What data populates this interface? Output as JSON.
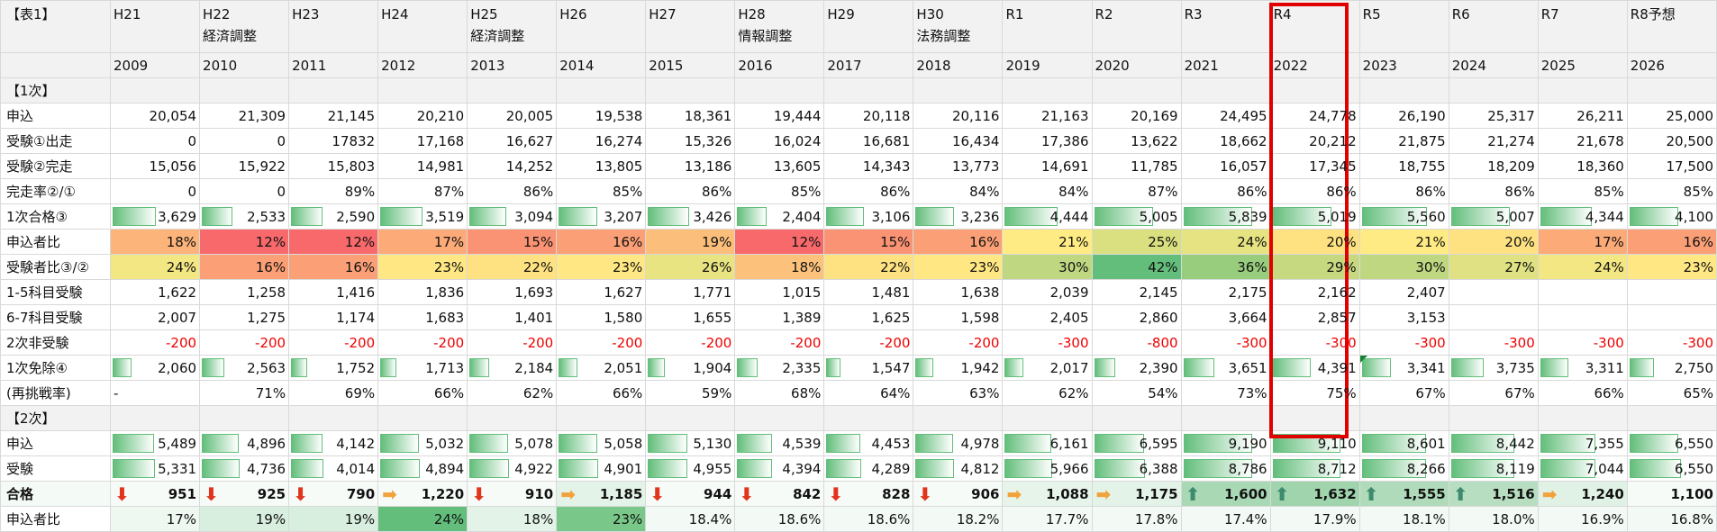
{
  "corner_label": "【表1】",
  "columns": [
    {
      "era": "H21",
      "note": "",
      "year": "2009"
    },
    {
      "era": "H22",
      "note": "経済調整",
      "year": "2010"
    },
    {
      "era": "H23",
      "note": "",
      "year": "2011"
    },
    {
      "era": "H24",
      "note": "",
      "year": "2012"
    },
    {
      "era": "H25",
      "note": "経済調整",
      "year": "2013"
    },
    {
      "era": "H26",
      "note": "",
      "year": "2014"
    },
    {
      "era": "H27",
      "note": "",
      "year": "2015"
    },
    {
      "era": "H28",
      "note": "情報調整",
      "year": "2016"
    },
    {
      "era": "H29",
      "note": "",
      "year": "2017"
    },
    {
      "era": "H30",
      "note": "法務調整",
      "year": "2018"
    },
    {
      "era": "R1",
      "note": "",
      "year": "2019"
    },
    {
      "era": "R2",
      "note": "",
      "year": "2020"
    },
    {
      "era": "R3",
      "note": "",
      "year": "2021"
    },
    {
      "era": "R4",
      "note": "",
      "year": "2022"
    },
    {
      "era": "R5",
      "note": "",
      "year": "2023"
    },
    {
      "era": "R6",
      "note": "",
      "year": "2024"
    },
    {
      "era": "R7",
      "note": "",
      "year": "2025"
    },
    {
      "era": "R8予想",
      "note": "",
      "year": "2026"
    }
  ],
  "sections": {
    "first": "【1次】",
    "second": "【2次】"
  },
  "rows": [
    {
      "id": "apply1",
      "label": "申込",
      "type": "plain",
      "values": [
        "20,054",
        "21,309",
        "21,145",
        "20,210",
        "20,005",
        "19,538",
        "18,361",
        "19,444",
        "20,118",
        "20,116",
        "21,163",
        "20,169",
        "24,495",
        "24,778",
        "26,190",
        "25,317",
        "26,211",
        "25,000"
      ]
    },
    {
      "id": "take1",
      "label": "受験①出走",
      "type": "plain",
      "values": [
        "0",
        "0",
        "17832",
        "17,168",
        "16,627",
        "16,274",
        "15,326",
        "16,024",
        "16,681",
        "16,434",
        "17,386",
        "13,622",
        "18,662",
        "20,212",
        "21,875",
        "21,274",
        "21,678",
        "20,500"
      ]
    },
    {
      "id": "finish",
      "label": "受験②完走",
      "type": "plain",
      "values": [
        "15,056",
        "15,922",
        "15,803",
        "14,981",
        "14,252",
        "13,805",
        "13,186",
        "13,605",
        "14,343",
        "13,773",
        "14,691",
        "11,785",
        "16,057",
        "17,345",
        "18,755",
        "18,209",
        "18,360",
        "17,500"
      ]
    },
    {
      "id": "finrate",
      "label": "完走率②/①",
      "type": "plain",
      "values": [
        "0",
        "0",
        "89%",
        "87%",
        "86%",
        "85%",
        "86%",
        "85%",
        "86%",
        "84%",
        "84%",
        "87%",
        "86%",
        "86%",
        "86%",
        "86%",
        "85%",
        "85%"
      ]
    },
    {
      "id": "pass1",
      "label": "1次合格③",
      "type": "bar",
      "values": [
        "3,629",
        "2,533",
        "2,590",
        "3,519",
        "3,094",
        "3,207",
        "3,426",
        "2,404",
        "3,106",
        "3,236",
        "4,444",
        "5,005",
        "5,839",
        "5,019",
        "5,560",
        "5,007",
        "4,344",
        "4,100"
      ],
      "levels": [
        0.62,
        0.43,
        0.44,
        0.6,
        0.53,
        0.55,
        0.59,
        0.41,
        0.53,
        0.55,
        0.76,
        0.86,
        1.0,
        0.86,
        0.95,
        0.86,
        0.74,
        0.7
      ]
    },
    {
      "id": "ratio_apply",
      "label": "申込者比",
      "type": "heat",
      "values": [
        "18%",
        "12%",
        "12%",
        "17%",
        "15%",
        "16%",
        "19%",
        "12%",
        "15%",
        "16%",
        "21%",
        "25%",
        "24%",
        "20%",
        "21%",
        "20%",
        "17%",
        "16%"
      ],
      "colors": [
        "#fcb47a",
        "#f8696b",
        "#f8696b",
        "#fcaa77",
        "#fa9373",
        "#fba076",
        "#fcbf7b",
        "#f8696b",
        "#fa9373",
        "#fba076",
        "#ffeb84",
        "#dae080",
        "#e5e382",
        "#fee282",
        "#ffeb84",
        "#fee282",
        "#fcaa77",
        "#fba076"
      ]
    },
    {
      "id": "ratio_take",
      "label": "受験者比③/②",
      "type": "heat",
      "values": [
        "24%",
        "16%",
        "16%",
        "23%",
        "22%",
        "23%",
        "26%",
        "18%",
        "22%",
        "23%",
        "30%",
        "42%",
        "36%",
        "29%",
        "30%",
        "27%",
        "24%",
        "23%"
      ],
      "colors": [
        "#f3e783",
        "#fba076",
        "#fba076",
        "#ffe883",
        "#fee282",
        "#ffe883",
        "#e8e482",
        "#fcc27c",
        "#fee282",
        "#ffe883",
        "#bfd780",
        "#63be7b",
        "#98cd7e",
        "#c7d980",
        "#bfd780",
        "#dfe182",
        "#f3e783",
        "#ffe883"
      ]
    },
    {
      "id": "sub15",
      "label": "1-5科目受験",
      "type": "plain",
      "values": [
        "1,622",
        "1,258",
        "1,416",
        "1,836",
        "1,693",
        "1,627",
        "1,771",
        "1,015",
        "1,481",
        "1,638",
        "2,039",
        "2,145",
        "2,175",
        "2,162",
        "2,407",
        "",
        "",
        ""
      ]
    },
    {
      "id": "sub67",
      "label": "6-7科目受験",
      "type": "plain",
      "values": [
        "2,007",
        "1,275",
        "1,174",
        "1,683",
        "1,401",
        "1,580",
        "1,655",
        "1,389",
        "1,625",
        "1,598",
        "2,405",
        "2,860",
        "3,664",
        "2,857",
        "3,153",
        "",
        "",
        ""
      ]
    },
    {
      "id": "nonexam",
      "label": "2次非受験",
      "type": "neg",
      "values": [
        "-200",
        "-200",
        "-200",
        "-200",
        "-200",
        "-200",
        "-200",
        "-200",
        "-200",
        "-200",
        "-300",
        "-800",
        "-300",
        "-300",
        "-300",
        "-300",
        "-300",
        "-300"
      ]
    },
    {
      "id": "exempt",
      "label": "1次免除④",
      "type": "bar",
      "values": [
        "2,060",
        "2,563",
        "1,752",
        "1,713",
        "2,184",
        "2,051",
        "1,904",
        "2,335",
        "1,547",
        "1,942",
        "2,017",
        "2,390",
        "3,651",
        "4,391",
        "3,341",
        "3,735",
        "3,311",
        "2,750"
      ],
      "levels": [
        0.25,
        0.31,
        0.21,
        0.21,
        0.27,
        0.25,
        0.23,
        0.28,
        0.19,
        0.24,
        0.25,
        0.29,
        0.44,
        0.54,
        0.41,
        0.46,
        0.4,
        0.34
      ]
    },
    {
      "id": "retry",
      "label": "(再挑戦率)",
      "type": "plain",
      "values": [
        "-",
        "71%",
        "69%",
        "66%",
        "62%",
        "66%",
        "59%",
        "68%",
        "64%",
        "63%",
        "62%",
        "54%",
        "73%",
        "75%",
        "67%",
        "67%",
        "66%",
        "65%"
      ]
    }
  ],
  "rows2": [
    {
      "id": "apply2",
      "label": "申込",
      "type": "bar",
      "values": [
        "5,489",
        "4,896",
        "4,142",
        "5,032",
        "5,078",
        "5,058",
        "5,130",
        "4,539",
        "4,453",
        "4,978",
        "6,161",
        "6,595",
        "9,190",
        "9,110",
        "8,601",
        "8,442",
        "7,355",
        "6,550"
      ],
      "levels": [
        0.6,
        0.53,
        0.45,
        0.55,
        0.55,
        0.55,
        0.56,
        0.49,
        0.48,
        0.54,
        0.67,
        0.72,
        1.0,
        0.99,
        0.94,
        0.92,
        0.8,
        0.71
      ]
    },
    {
      "id": "take2",
      "label": "受験",
      "type": "bar",
      "values": [
        "5,331",
        "4,736",
        "4,014",
        "4,894",
        "4,922",
        "4,901",
        "4,955",
        "4,394",
        "4,289",
        "4,812",
        "5,966",
        "6,388",
        "8,786",
        "8,712",
        "8,266",
        "8,119",
        "7,044",
        "6,550"
      ],
      "levels": [
        0.61,
        0.54,
        0.46,
        0.56,
        0.56,
        0.56,
        0.56,
        0.5,
        0.49,
        0.55,
        0.68,
        0.73,
        1.0,
        0.99,
        0.94,
        0.92,
        0.8,
        0.75
      ]
    },
    {
      "id": "pass2",
      "label": "合格",
      "type": "pass",
      "values": [
        "951",
        "925",
        "790",
        "1,220",
        "910",
        "1,185",
        "944",
        "842",
        "828",
        "906",
        "1,088",
        "1,175",
        "1,600",
        "1,632",
        "1,555",
        "1,516",
        "1,240",
        "1,100"
      ],
      "arrows": [
        "down",
        "down",
        "down",
        "side",
        "down",
        "side",
        "down",
        "down",
        "down",
        "down",
        "side",
        "side",
        "up",
        "up",
        "up",
        "up",
        "side",
        ""
      ],
      "colors": [
        "#f6fbf8",
        "#f6fbf8",
        "#f6fbf8",
        "#f6fbf8",
        "#f6fbf8",
        "#e3f3e8",
        "#f6fbf8",
        "#f6fbf8",
        "#f6fbf8",
        "#f6fbf8",
        "#e6f4ea",
        "#e3f3e8",
        "#a9d8b5",
        "#9fd4ad",
        "#afdbba",
        "#b7dec1",
        "#e0f2e5",
        "#f6fbf8"
      ]
    },
    {
      "id": "ratio2",
      "label": "申込者比",
      "type": "heat",
      "values": [
        "17%",
        "19%",
        "19%",
        "24%",
        "18%",
        "23%",
        "18.4%",
        "18.6%",
        "18.6%",
        "18.2%",
        "17.7%",
        "17.8%",
        "17.4%",
        "17.9%",
        "18.1%",
        "18.0%",
        "16.9%",
        "16.8%"
      ],
      "colors": [
        "#eef8f1",
        "#d8efe0",
        "#d8efe0",
        "#63be7b",
        "#e3f3e8",
        "#7ac889",
        "#f3faf5",
        "#f3faf5",
        "#f3faf5",
        "#f3faf5",
        "#f3faf5",
        "#f3faf5",
        "#f3faf5",
        "#f3faf5",
        "#f3faf5",
        "#f3faf5",
        "#f3faf5",
        "#f3faf5"
      ]
    }
  ],
  "arrow_glyphs": {
    "down": "⬇",
    "side": "➡",
    "up": "⬆"
  },
  "highlight_color": "#e00000",
  "highlight_column": "R7"
}
